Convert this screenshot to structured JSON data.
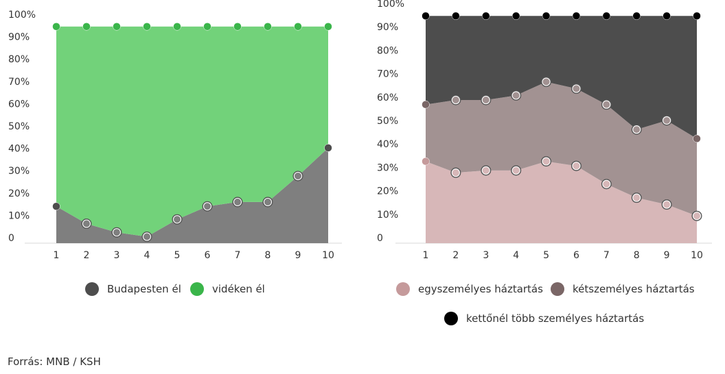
{
  "source": "Forrás: MNB / KSH",
  "colors": {
    "budapest": "#7f7f7f",
    "budapest_marker": "#4d4d4d",
    "videk": "#72d27a",
    "videk_marker": "#3ab54a",
    "egy": "#d7b7b8",
    "egy_marker": "#c59a9b",
    "ket": "#a29292",
    "ket_marker": "#7a6666",
    "tobb": "#4d4d4d",
    "tobb_marker": "#000000"
  },
  "chart_data": [
    {
      "type": "area",
      "stacked": true,
      "categories": [
        "1",
        "2",
        "3",
        "4",
        "5",
        "6",
        "7",
        "8",
        "9",
        "10"
      ],
      "y_ticks": [
        "0",
        "10%",
        "20%",
        "30%",
        "40%",
        "50%",
        "60%",
        "70%",
        "80%",
        "90%",
        "100%"
      ],
      "ylim": [
        0,
        100
      ],
      "series": [
        {
          "name": "Budapesten él",
          "color_key": "budapest",
          "values": [
            17,
            9,
            5,
            3,
            11,
            17,
            19,
            19,
            31,
            44
          ]
        },
        {
          "name": "vidéken él",
          "color_key": "videk",
          "values": [
            83,
            91,
            95,
            97,
            89,
            83,
            81,
            81,
            69,
            56
          ]
        }
      ],
      "legend": "bottom"
    },
    {
      "type": "area",
      "stacked": true,
      "categories": [
        "1",
        "2",
        "3",
        "4",
        "5",
        "6",
        "7",
        "8",
        "9",
        "10"
      ],
      "y_ticks": [
        "0",
        "10%",
        "20%",
        "30%",
        "40%",
        "50%",
        "60%",
        "70%",
        "80%",
        "90%",
        "100%"
      ],
      "ylim": [
        0,
        100
      ],
      "series": [
        {
          "name": "egyszemélyes háztartás",
          "color_key": "egy",
          "values": [
            36,
            31,
            32,
            32,
            36,
            34,
            26,
            20,
            17,
            12
          ]
        },
        {
          "name": "kétszemélyes háztartás",
          "color_key": "ket",
          "values": [
            25,
            32,
            31,
            33,
            35,
            34,
            35,
            30,
            37,
            34
          ]
        },
        {
          "name": "kettőnél több személyes háztartás",
          "color_key": "tobb",
          "values": [
            39,
            37,
            37,
            35,
            29,
            32,
            39,
            50,
            46,
            54
          ]
        }
      ],
      "legend": "bottom"
    }
  ]
}
